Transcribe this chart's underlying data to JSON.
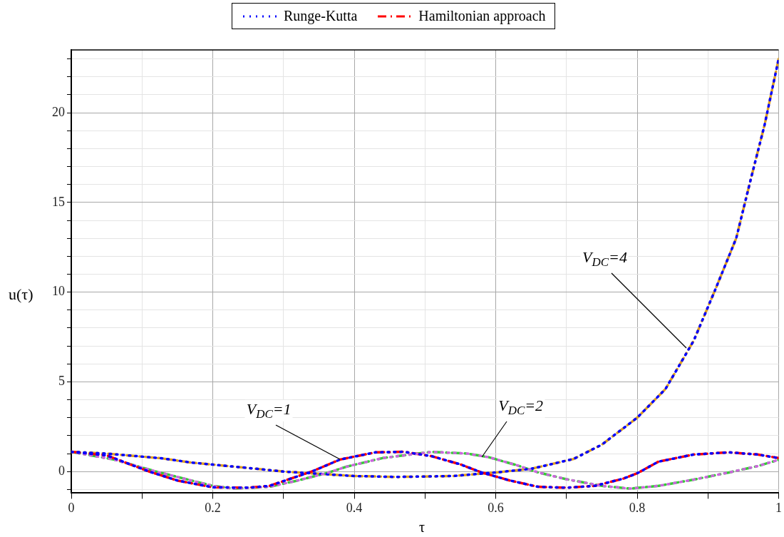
{
  "chart_data": {
    "type": "line",
    "xlabel": "τ",
    "ylabel": "u(τ)",
    "xlim": [
      0,
      1
    ],
    "ylim": [
      -1.2,
      23.5
    ],
    "xticks": [
      0,
      {
        "value": 0.1,
        "label": null
      },
      0.2,
      {
        "value": 0.3,
        "label": null
      },
      0.4,
      {
        "value": 0.5,
        "label": null
      },
      0.6,
      {
        "value": 0.7,
        "label": null
      },
      0.8,
      {
        "value": 0.9,
        "label": null
      },
      1
    ],
    "yticks": [
      {
        "value": -1,
        "label": null
      },
      0,
      {
        "value": 1,
        "label": null
      },
      {
        "value": 2,
        "label": null
      },
      {
        "value": 3,
        "label": null
      },
      {
        "value": 4,
        "label": null
      },
      5,
      {
        "value": 6,
        "label": null
      },
      {
        "value": 7,
        "label": null
      },
      {
        "value": 8,
        "label": null
      },
      {
        "value": 9,
        "label": null
      },
      10,
      {
        "value": 11,
        "label": null
      },
      {
        "value": 12,
        "label": null
      },
      {
        "value": 13,
        "label": null
      },
      {
        "value": 14,
        "label": null
      },
      15,
      {
        "value": 16,
        "label": null
      },
      {
        "value": 17,
        "label": null
      },
      {
        "value": 18,
        "label": null
      },
      {
        "value": 19,
        "label": null
      },
      20,
      {
        "value": 21,
        "label": null
      },
      {
        "value": 22,
        "label": null
      },
      {
        "value": 23,
        "label": null
      }
    ],
    "grid": true,
    "legend": "top",
    "marker": "none",
    "series": [
      {
        "name": "Runge-Kutta",
        "color": "#0000ff",
        "line_style": "dotted",
        "x": [
          0,
          0.05,
          0.11,
          0.15,
          0.2,
          0.25,
          0.28,
          0.31,
          0.34,
          0.38,
          0.43,
          0.47,
          0.51,
          0.55,
          0.58,
          0.62,
          0.66,
          0.7,
          0.74,
          0.78,
          0.8,
          0.83,
          0.88,
          0.93,
          0.97,
          1
        ],
        "values": [
          1.1,
          0.9,
          0,
          -0.5,
          -0.88,
          -0.9,
          -0.8,
          -0.4,
          0,
          0.67,
          1.07,
          1.1,
          0.85,
          0.4,
          -0.05,
          -0.5,
          -0.85,
          -0.9,
          -0.8,
          -0.4,
          -0.1,
          0.55,
          0.95,
          1.07,
          0.95,
          0.75
        ]
      },
      {
        "color": "#cc66dd",
        "line_style": "dotted",
        "x": [
          0,
          0.06,
          0.12,
          0.2,
          0.23,
          0.28,
          0.32,
          0.36,
          0.39,
          0.44,
          0.49,
          0.51,
          0.56,
          0.59,
          0.63,
          0.66,
          0.7,
          0.75,
          0.79,
          0.83,
          0.88,
          0.93,
          0.97,
          1
        ],
        "values": [
          1.1,
          0.67,
          0,
          -0.8,
          -0.95,
          -0.85,
          -0.5,
          -0.1,
          0.28,
          0.75,
          1,
          1.1,
          1,
          0.8,
          0.35,
          -0.05,
          -0.43,
          -0.8,
          -0.95,
          -0.8,
          -0.45,
          -0.05,
          0.3,
          0.65
        ]
      },
      {
        "color": "#0000ff",
        "line_style": "dotted",
        "x": [
          0,
          0.05,
          0.125,
          0.17,
          0.25,
          0.3,
          0.34,
          0.4,
          0.46,
          0.54,
          0.6,
          0.65,
          0.71,
          0.75,
          0.8,
          0.84,
          0.88,
          0.91,
          0.94,
          0.96,
          0.98,
          1
        ],
        "values": [
          1.1,
          1,
          0.75,
          0.5,
          0.2,
          0,
          -0.1,
          -0.25,
          -0.3,
          -0.25,
          -0.05,
          0.15,
          0.7,
          1.5,
          3,
          4.6,
          7.3,
          10.1,
          13,
          16.2,
          19.3,
          23
        ]
      },
      {
        "name": "Hamiltonian approach",
        "color": "#ff0000",
        "line_style": "dashdot",
        "x": [
          0,
          0.05,
          0.11,
          0.15,
          0.2,
          0.25,
          0.28,
          0.31,
          0.34,
          0.38,
          0.43,
          0.47,
          0.51,
          0.55,
          0.58,
          0.62,
          0.66,
          0.7,
          0.74,
          0.78,
          0.8,
          0.83,
          0.88,
          0.93,
          0.97,
          1
        ],
        "values": [
          1.1,
          0.9,
          0,
          -0.5,
          -0.88,
          -0.9,
          -0.8,
          -0.4,
          0,
          0.67,
          1.07,
          1.1,
          0.85,
          0.4,
          -0.05,
          -0.5,
          -0.85,
          -0.9,
          -0.8,
          -0.4,
          -0.1,
          0.55,
          0.95,
          1.07,
          0.95,
          0.75
        ]
      },
      {
        "color": "#33cc33",
        "line_style": "dashdot",
        "x": [
          0,
          0.06,
          0.12,
          0.2,
          0.23,
          0.28,
          0.32,
          0.36,
          0.39,
          0.44,
          0.49,
          0.51,
          0.56,
          0.59,
          0.63,
          0.66,
          0.7,
          0.75,
          0.79,
          0.83,
          0.88,
          0.93,
          0.97,
          1
        ],
        "values": [
          1.1,
          0.67,
          0,
          -0.8,
          -0.95,
          -0.85,
          -0.5,
          -0.1,
          0.28,
          0.75,
          1,
          1.1,
          1,
          0.8,
          0.35,
          -0.05,
          -0.43,
          -0.8,
          -0.95,
          -0.8,
          -0.45,
          -0.05,
          0.3,
          0.65
        ]
      },
      {
        "color": "#e0a020",
        "line_style": "dashdot",
        "x": [
          0,
          0.05,
          0.125,
          0.17,
          0.25,
          0.3,
          0.34,
          0.4,
          0.46,
          0.54,
          0.6,
          0.65,
          0.71,
          0.75,
          0.8,
          0.84,
          0.88,
          0.91,
          0.94,
          0.96,
          0.98,
          1
        ],
        "values": [
          1.1,
          1,
          0.75,
          0.5,
          0.2,
          0,
          -0.1,
          -0.25,
          -0.3,
          -0.25,
          -0.05,
          0.15,
          0.7,
          1.5,
          3,
          4.6,
          7.3,
          10.1,
          13,
          16.2,
          19.3,
          23
        ]
      }
    ],
    "annotations": [
      {
        "text": "V$_{DC}$=1",
        "x": 0.38,
        "y": 0.7
      },
      {
        "text": "V$_{DC}$=2",
        "x": 0.58,
        "y": 0.8
      },
      {
        "text": "V$_{DC}$=4",
        "x": 0.87,
        "y": 6.9
      }
    ]
  }
}
